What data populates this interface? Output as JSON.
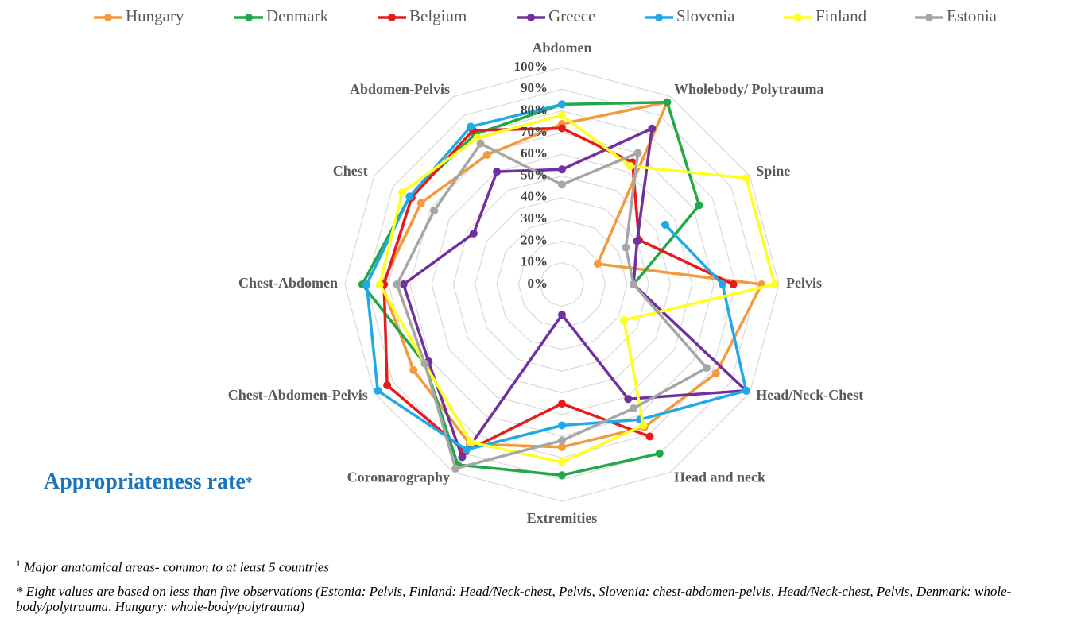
{
  "chart_data": {
    "type": "radar",
    "title": "Appropriateness rate",
    "title_mark": "*",
    "categories": [
      "Abdomen",
      "Wholebody/ Polytrauma",
      "Spine",
      "Pelvis",
      "Head/Neck-Chest",
      "Head and neck",
      "Extremities",
      "Coronarography",
      "Chest-Abdomen-Pelvis",
      "Chest-Abdomen",
      "Chest",
      "Abdomen-Pelvis"
    ],
    "rlim": [
      0,
      100
    ],
    "rticks": [
      {
        "value": 0,
        "label": "0%"
      },
      {
        "value": 10,
        "label": "10%"
      },
      {
        "value": 20,
        "label": "20%"
      },
      {
        "value": 30,
        "label": "30%"
      },
      {
        "value": 40,
        "label": "40%"
      },
      {
        "value": 50,
        "label": "50%"
      },
      {
        "value": 60,
        "label": "60%"
      },
      {
        "value": 70,
        "label": "70%"
      },
      {
        "value": 80,
        "label": "80%"
      },
      {
        "value": 90,
        "label": "90%"
      },
      {
        "value": 100,
        "label": "100%"
      }
    ],
    "grid": true,
    "legend": "top",
    "series": [
      {
        "name": "Hungary",
        "color": "#f39a3c",
        "values": [
          74,
          97,
          19,
          92,
          82,
          76,
          75,
          85,
          79,
          83,
          75,
          69
        ]
      },
      {
        "name": "Denmark",
        "color": "#22a84a",
        "values": [
          83,
          97,
          73,
          33,
          null,
          90,
          88,
          96,
          73,
          92,
          81,
          80
        ]
      },
      {
        "name": "Belgium",
        "color": "#e81a1a",
        "values": [
          72,
          65,
          41,
          79,
          null,
          81,
          55,
          89,
          93,
          82,
          80,
          82
        ]
      },
      {
        "name": "Greece",
        "color": "#7030a0",
        "values": [
          53,
          83,
          40,
          33,
          98,
          61,
          14,
          92,
          71,
          73,
          47,
          60
        ]
      },
      {
        "name": "Slovenia",
        "color": "#1fa9e8",
        "values": [
          83,
          null,
          55,
          74,
          98,
          72,
          65,
          88,
          98,
          90,
          81,
          84
        ]
      },
      {
        "name": "Finland",
        "color": "#ffff20",
        "values": [
          78,
          63,
          98,
          98,
          33,
          75,
          82,
          84,
          73,
          84,
          85,
          78
        ]
      },
      {
        "name": "Estonia",
        "color": "#a6a6a6",
        "values": [
          46,
          70,
          34,
          33,
          77,
          66,
          72,
          98,
          73,
          76,
          68,
          75
        ]
      }
    ]
  },
  "footnotes": [
    {
      "marker": "1",
      "text": "Major anatomical areas- common to at least 5 countries"
    },
    {
      "text": "* Eight values are based on less than five observations (Estonia: Pelvis, Finland: Head/Neck-chest, Pelvis, Slovenia: chest-abdomen-pelvis, Head/Neck-chest, Pelvis, Denmark: whole-body/polytrauma, Hungary: whole-body/polytrauma)"
    }
  ]
}
